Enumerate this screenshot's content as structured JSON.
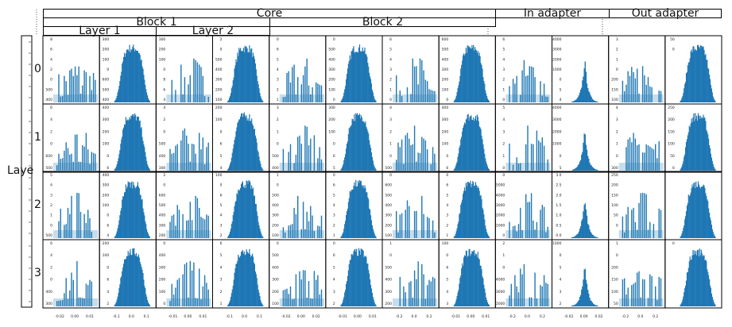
{
  "headers": {
    "core": "Core",
    "block_1": "Block 1",
    "block_2": "Block 2",
    "layer_1": "Layer 1",
    "layer_2": "Layer 2",
    "in_adapter": "In adapter",
    "out_adapter": "Out adapter"
  },
  "row_axis_label": "Laye",
  "rows": [
    "0",
    "1",
    "2",
    "3"
  ],
  "chart_data": {
    "type": "bar",
    "bar_color": "#1f77b4",
    "panel_types_by_column": [
      "sparse",
      "bell",
      "sparse",
      "bell",
      "sparse",
      "bell",
      "sparse",
      "bell",
      "sparse",
      "spike",
      "sparse",
      "bell"
    ],
    "y_ticks_by_row": [
      [
        "8",
        "6",
        "4",
        "2",
        "0",
        "500",
        "400",
        "300",
        "200",
        "100",
        "0",
        "600",
        "500",
        "400",
        "300",
        "200",
        "100",
        "0",
        "8",
        "6",
        "4",
        "2",
        "0",
        "500",
        "400",
        "300",
        "200",
        "100",
        "0",
        "6",
        "5",
        "4",
        "3",
        "2",
        "1",
        "0",
        "500",
        "400",
        "300",
        "200",
        "100",
        "0",
        "6",
        "5",
        "4",
        "3",
        "2",
        "1",
        "0",
        "600",
        "500",
        "400",
        "300",
        "200",
        "100",
        "0",
        "6",
        "5",
        "4",
        "3",
        "2",
        "1",
        "0",
        "4000",
        "3000",
        "2000",
        "1000",
        "0",
        "5",
        "4",
        "3",
        "2",
        "1",
        "0",
        "200",
        "150",
        "100",
        "50",
        "0"
      ],
      [
        "6",
        "4",
        "2",
        "0",
        "600",
        "500",
        "400",
        "300",
        "200",
        "100",
        "0",
        "6",
        "4",
        "2",
        "0",
        "500",
        "400",
        "300",
        "200",
        "100",
        "0",
        "6",
        "5",
        "4",
        "3",
        "2",
        "1",
        "0",
        "500",
        "400",
        "300",
        "200",
        "100",
        "0",
        "6",
        "5",
        "4",
        "3",
        "2",
        "1",
        "0",
        "500",
        "400",
        "300",
        "200",
        "100",
        "0",
        "6",
        "5",
        "4",
        "3",
        "2",
        "1",
        "0",
        "4000",
        "3000",
        "2000",
        "1000",
        "0",
        "5",
        "4",
        "3",
        "2",
        "1",
        "0",
        "300",
        "250",
        "200",
        "150",
        "100",
        "50",
        "0"
      ],
      [
        "5",
        "4",
        "3",
        "2",
        "1",
        "0",
        "500",
        "400",
        "300",
        "200",
        "100",
        "0",
        "6",
        "4",
        "2",
        "0",
        "600",
        "500",
        "400",
        "300",
        "200",
        "100",
        "0",
        "6",
        "5",
        "4",
        "3",
        "2",
        "1",
        "0",
        "500",
        "400",
        "300",
        "200",
        "100",
        "0",
        "6",
        "5",
        "4",
        "3",
        "2",
        "1",
        "0",
        "600",
        "500",
        "400",
        "300",
        "200",
        "100",
        "0",
        "6",
        "5",
        "4",
        "3",
        "2",
        "1",
        "0",
        "5000",
        "4000",
        "3000",
        "2000",
        "1000",
        "0",
        "3.0",
        "2.5",
        "2.0",
        "1.5",
        "1.0",
        "0.5",
        "0.0",
        "250",
        "200",
        "150",
        "100",
        "50",
        "0"
      ],
      [
        "6",
        "4",
        "2",
        "0",
        "400",
        "300",
        "200",
        "100",
        "0",
        "6",
        "4",
        "2",
        "0",
        "400",
        "300",
        "200",
        "100",
        "0",
        "6",
        "5",
        "4",
        "3",
        "2",
        "1",
        "0",
        "500",
        "400",
        "300",
        "200",
        "100",
        "0",
        "6",
        "5",
        "4",
        "3",
        "2",
        "1",
        "0",
        "500",
        "400",
        "300",
        "200",
        "100",
        "0",
        "6",
        "5",
        "4",
        "3",
        "2",
        "1",
        "0",
        "4000",
        "3000",
        "2000",
        "1000",
        "0",
        "5",
        "4",
        "3",
        "2",
        "1",
        "0",
        "200",
        "150",
        "100",
        "50",
        "0"
      ]
    ],
    "x_ticks": [
      "-0.02",
      "0.00",
      "0.01",
      "-0.1",
      "0.0",
      "0.1",
      "-0.01",
      "0.00",
      "0.01",
      "-0.1",
      "0.0",
      "0.1",
      "-0.02",
      "0.00",
      "0.02",
      "-0.01",
      "0.00",
      "0.01",
      "-0.2",
      "0.0",
      "0.2",
      "-0.01",
      "0.00",
      "0.01",
      "-0.2",
      "0.0",
      "0.2",
      "-0.02",
      "0.00",
      "0.02",
      "-0.2",
      "0.0",
      "0.2"
    ]
  }
}
